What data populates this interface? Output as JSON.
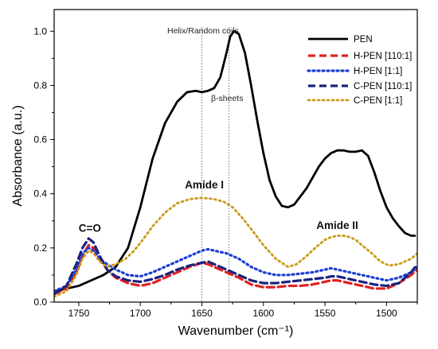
{
  "chart_data": {
    "type": "line",
    "xlabel": "Wavenumber (cm⁻¹)",
    "ylabel": "Absorbance (a.u.)",
    "xlim": [
      1770,
      1475
    ],
    "ylim": [
      0,
      1.08
    ],
    "x_reversed": true,
    "grid": false,
    "legend_position": "top-right",
    "x_ticks": [
      1750,
      1700,
      1650,
      1600,
      1550,
      1500
    ],
    "x_tick_labels": [
      "1750",
      "1700",
      "1650",
      "1600",
      "1550",
      "1500"
    ],
    "y_ticks": [
      0.0,
      0.2,
      0.4,
      0.6,
      0.8,
      1.0
    ],
    "y_tick_labels": [
      "0.0",
      "0.2",
      "0.4",
      "0.6",
      "0.8",
      "1.0"
    ],
    "vlines": [
      {
        "x": 1650,
        "label": "Helix/Random coils"
      },
      {
        "x": 1628,
        "label": "β-sheets"
      }
    ],
    "annotations": [
      {
        "text": "C=O",
        "x": 1741,
        "y": 0.26
      },
      {
        "text": "Amide I",
        "x": 1648,
        "y": 0.42
      },
      {
        "text": "Amide II",
        "x": 1540,
        "y": 0.27
      }
    ],
    "series": [
      {
        "name": "PEN",
        "color": "#000000",
        "style": "solid",
        "width": 2.8,
        "x": [
          1770,
          1760,
          1750,
          1740,
          1730,
          1720,
          1710,
          1700,
          1690,
          1680,
          1670,
          1662,
          1655,
          1650,
          1645,
          1640,
          1635,
          1630,
          1627,
          1624,
          1620,
          1615,
          1610,
          1605,
          1600,
          1595,
          1590,
          1585,
          1580,
          1575,
          1570,
          1565,
          1560,
          1555,
          1550,
          1545,
          1540,
          1535,
          1530,
          1525,
          1520,
          1515,
          1510,
          1505,
          1500,
          1495,
          1490,
          1485,
          1480,
          1477
        ],
        "y": [
          0.04,
          0.05,
          0.06,
          0.08,
          0.1,
          0.13,
          0.2,
          0.35,
          0.53,
          0.66,
          0.74,
          0.775,
          0.78,
          0.775,
          0.78,
          0.79,
          0.83,
          0.92,
          0.98,
          1.0,
          0.99,
          0.92,
          0.8,
          0.67,
          0.55,
          0.45,
          0.39,
          0.355,
          0.35,
          0.36,
          0.39,
          0.42,
          0.46,
          0.5,
          0.53,
          0.55,
          0.56,
          0.56,
          0.555,
          0.555,
          0.56,
          0.54,
          0.48,
          0.41,
          0.35,
          0.31,
          0.28,
          0.255,
          0.245,
          0.245
        ]
      },
      {
        "name": "H-PEN [110:1]",
        "color": "#e02020",
        "style": "dash",
        "width": 3.2,
        "x": [
          1770,
          1760,
          1752,
          1747,
          1742,
          1738,
          1733,
          1727,
          1720,
          1710,
          1700,
          1690,
          1680,
          1670,
          1660,
          1650,
          1645,
          1640,
          1635,
          1630,
          1625,
          1620,
          1610,
          1600,
          1590,
          1580,
          1570,
          1560,
          1550,
          1545,
          1540,
          1535,
          1530,
          1520,
          1510,
          1500,
          1490,
          1480,
          1475
        ],
        "y": [
          0.03,
          0.05,
          0.11,
          0.17,
          0.21,
          0.2,
          0.16,
          0.12,
          0.09,
          0.07,
          0.06,
          0.07,
          0.09,
          0.11,
          0.13,
          0.145,
          0.14,
          0.13,
          0.12,
          0.11,
          0.1,
          0.09,
          0.065,
          0.055,
          0.055,
          0.06,
          0.06,
          0.065,
          0.075,
          0.08,
          0.08,
          0.075,
          0.07,
          0.06,
          0.05,
          0.05,
          0.07,
          0.1,
          0.12
        ]
      },
      {
        "name": "H-PEN [1:1]",
        "color": "#1c3fd6",
        "style": "dot",
        "width": 3.2,
        "x": [
          1770,
          1760,
          1752,
          1747,
          1742,
          1738,
          1733,
          1727,
          1720,
          1710,
          1700,
          1690,
          1680,
          1670,
          1660,
          1650,
          1645,
          1640,
          1635,
          1630,
          1625,
          1620,
          1610,
          1600,
          1590,
          1580,
          1570,
          1560,
          1550,
          1545,
          1540,
          1535,
          1530,
          1520,
          1510,
          1500,
          1490,
          1480,
          1475
        ],
        "y": [
          0.04,
          0.06,
          0.12,
          0.18,
          0.2,
          0.19,
          0.16,
          0.14,
          0.12,
          0.1,
          0.095,
          0.11,
          0.13,
          0.15,
          0.17,
          0.19,
          0.195,
          0.19,
          0.185,
          0.18,
          0.17,
          0.16,
          0.13,
          0.11,
          0.1,
          0.1,
          0.105,
          0.11,
          0.12,
          0.125,
          0.12,
          0.115,
          0.11,
          0.1,
          0.09,
          0.08,
          0.09,
          0.11,
          0.13
        ]
      },
      {
        "name": "C-PEN [110:1]",
        "color": "#1a237e",
        "style": "dash",
        "width": 3.2,
        "x": [
          1770,
          1760,
          1752,
          1747,
          1742,
          1738,
          1733,
          1727,
          1720,
          1710,
          1700,
          1690,
          1680,
          1670,
          1660,
          1650,
          1645,
          1640,
          1635,
          1630,
          1625,
          1620,
          1610,
          1600,
          1590,
          1580,
          1570,
          1560,
          1550,
          1545,
          1540,
          1535,
          1530,
          1520,
          1510,
          1500,
          1490,
          1480,
          1475
        ],
        "y": [
          0.03,
          0.06,
          0.14,
          0.2,
          0.235,
          0.22,
          0.17,
          0.12,
          0.095,
          0.08,
          0.075,
          0.085,
          0.1,
          0.12,
          0.135,
          0.145,
          0.15,
          0.14,
          0.13,
          0.12,
          0.11,
          0.1,
          0.08,
          0.07,
          0.07,
          0.075,
          0.08,
          0.085,
          0.09,
          0.095,
          0.095,
          0.09,
          0.085,
          0.075,
          0.065,
          0.06,
          0.07,
          0.11,
          0.14
        ]
      },
      {
        "name": "C-PEN [1:1]",
        "color": "#c99a1a",
        "style": "dot",
        "width": 2.8,
        "x": [
          1770,
          1760,
          1752,
          1747,
          1742,
          1738,
          1733,
          1727,
          1720,
          1712,
          1705,
          1698,
          1690,
          1680,
          1670,
          1660,
          1650,
          1640,
          1632,
          1625,
          1617,
          1610,
          1600,
          1590,
          1580,
          1573,
          1565,
          1558,
          1550,
          1545,
          1540,
          1535,
          1530,
          1525,
          1520,
          1512,
          1505,
          1498,
          1490,
          1480,
          1475
        ],
        "y": [
          0.02,
          0.04,
          0.1,
          0.16,
          0.19,
          0.18,
          0.15,
          0.13,
          0.14,
          0.16,
          0.19,
          0.23,
          0.28,
          0.33,
          0.365,
          0.38,
          0.385,
          0.38,
          0.37,
          0.35,
          0.31,
          0.27,
          0.21,
          0.16,
          0.13,
          0.14,
          0.17,
          0.2,
          0.23,
          0.24,
          0.245,
          0.245,
          0.24,
          0.23,
          0.21,
          0.18,
          0.15,
          0.135,
          0.14,
          0.16,
          0.18
        ]
      }
    ]
  }
}
